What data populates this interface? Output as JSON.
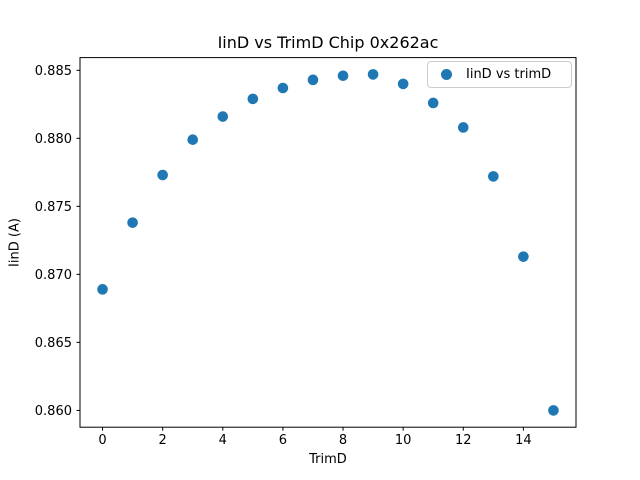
{
  "chart_data": {
    "type": "scatter",
    "title": "IinD vs TrimD Chip 0x262ac",
    "xlabel": "TrimD",
    "ylabel": "IinD (A)",
    "legend": {
      "label": "IinD vs trimD",
      "position": "upper right"
    },
    "series": [
      {
        "name": "IinD vs trimD",
        "marker": "circle",
        "color": "#1f77b4",
        "x": [
          0,
          1,
          2,
          3,
          4,
          5,
          6,
          7,
          8,
          9,
          10,
          11,
          12,
          13,
          14,
          15
        ],
        "y": [
          0.8689,
          0.8738,
          0.8773,
          0.8799,
          0.8816,
          0.8829,
          0.8837,
          0.8843,
          0.8846,
          0.8847,
          0.884,
          0.8826,
          0.8808,
          0.8772,
          0.8713,
          0.86
        ]
      }
    ],
    "xticks": [
      0,
      2,
      4,
      6,
      8,
      10,
      12,
      14
    ],
    "yticks": [
      0.86,
      0.865,
      0.87,
      0.875,
      0.88,
      0.885
    ],
    "xlim": [
      -0.75,
      15.75
    ],
    "ylim": [
      0.858766,
      0.885934
    ],
    "grid": false,
    "background": "#ffffff",
    "axis_color": "#000000"
  }
}
